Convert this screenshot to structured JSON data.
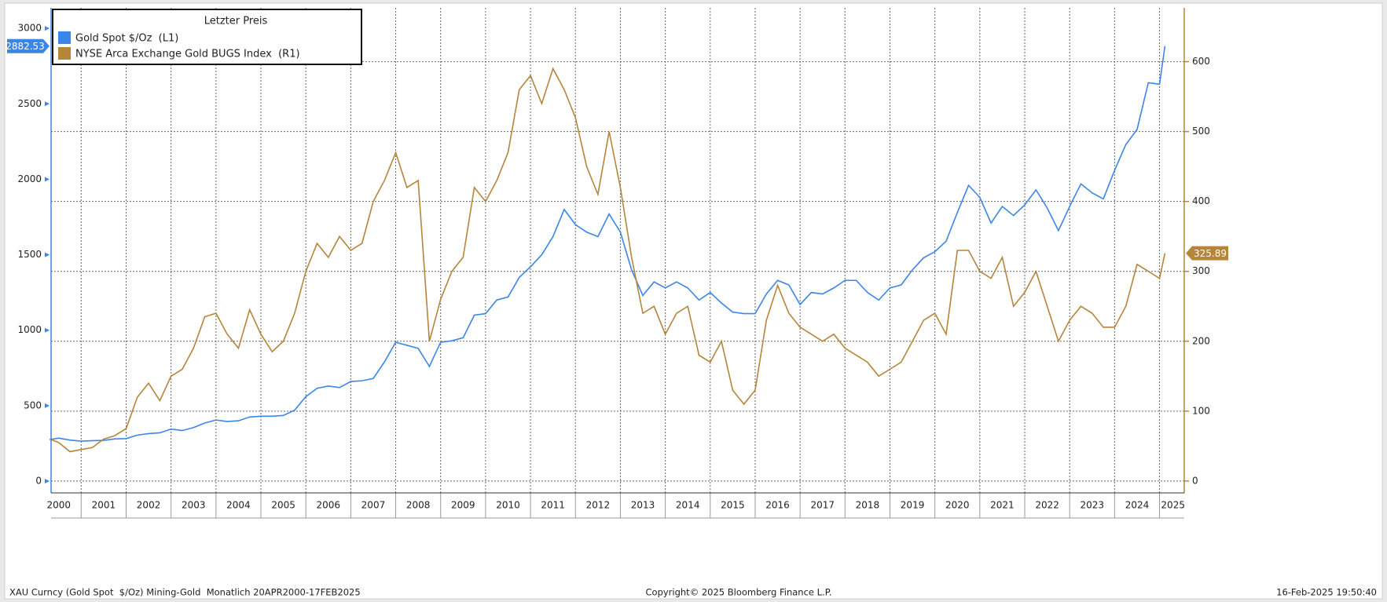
{
  "chart_data": {
    "type": "line",
    "legend_title": "Letzter Preis",
    "x": [
      2000.3,
      2000.5,
      2000.75,
      2001,
      2001.25,
      2001.5,
      2001.75,
      2002,
      2002.25,
      2002.5,
      2002.75,
      2003,
      2003.25,
      2003.5,
      2003.75,
      2004,
      2004.25,
      2004.5,
      2004.75,
      2005,
      2005.25,
      2005.5,
      2005.75,
      2006,
      2006.25,
      2006.5,
      2006.75,
      2007,
      2007.25,
      2007.5,
      2007.75,
      2008,
      2008.25,
      2008.5,
      2008.75,
      2009,
      2009.25,
      2009.5,
      2009.75,
      2010,
      2010.25,
      2010.5,
      2010.75,
      2011,
      2011.25,
      2011.5,
      2011.75,
      2012,
      2012.25,
      2012.5,
      2012.75,
      2013,
      2013.25,
      2013.5,
      2013.75,
      2014,
      2014.25,
      2014.5,
      2014.75,
      2015,
      2015.25,
      2015.5,
      2015.75,
      2016,
      2016.25,
      2016.5,
      2016.75,
      2017,
      2017.25,
      2017.5,
      2017.75,
      2018,
      2018.25,
      2018.5,
      2018.75,
      2019,
      2019.25,
      2019.5,
      2019.75,
      2020,
      2020.25,
      2020.5,
      2020.75,
      2021,
      2021.25,
      2021.5,
      2021.75,
      2022,
      2022.25,
      2022.5,
      2022.75,
      2023,
      2023.25,
      2023.5,
      2023.75,
      2024,
      2024.25,
      2024.5,
      2024.75,
      2025,
      2025.12
    ],
    "series": [
      {
        "name": "Gold Spot $/Oz  (L1)",
        "color": "#3a86e8",
        "axis": "y",
        "values": [
          275,
          285,
          272,
          265,
          268,
          270,
          280,
          282,
          305,
          315,
          320,
          345,
          335,
          355,
          385,
          405,
          395,
          400,
          425,
          430,
          430,
          435,
          470,
          560,
          615,
          630,
          620,
          660,
          665,
          680,
          790,
          920,
          900,
          880,
          760,
          920,
          930,
          950,
          1100,
          1110,
          1200,
          1220,
          1350,
          1420,
          1500,
          1620,
          1800,
          1700,
          1650,
          1620,
          1770,
          1650,
          1400,
          1230,
          1320,
          1280,
          1320,
          1280,
          1200,
          1250,
          1180,
          1120,
          1110,
          1110,
          1240,
          1330,
          1300,
          1170,
          1250,
          1240,
          1280,
          1330,
          1330,
          1250,
          1200,
          1280,
          1300,
          1400,
          1480,
          1520,
          1590,
          1780,
          1960,
          1880,
          1710,
          1820,
          1760,
          1830,
          1930,
          1810,
          1660,
          1820,
          1970,
          1910,
          1870,
          2060,
          2230,
          2330,
          2640,
          2630,
          2882.53
        ]
      },
      {
        "name": "NYSE Arca Exchange Gold BUGS Index  (R1)",
        "color": "#b5853a",
        "axis": "y2",
        "values": [
          60,
          55,
          42,
          45,
          48,
          60,
          65,
          75,
          120,
          140,
          115,
          150,
          160,
          190,
          235,
          240,
          210,
          190,
          245,
          210,
          185,
          200,
          240,
          300,
          340,
          320,
          350,
          330,
          340,
          400,
          430,
          470,
          420,
          430,
          200,
          260,
          300,
          320,
          420,
          400,
          430,
          470,
          560,
          580,
          540,
          590,
          560,
          520,
          450,
          410,
          500,
          420,
          320,
          240,
          250,
          210,
          240,
          250,
          180,
          170,
          200,
          130,
          110,
          130,
          230,
          280,
          240,
          220,
          210,
          200,
          210,
          190,
          180,
          170,
          150,
          160,
          170,
          200,
          230,
          240,
          210,
          330,
          330,
          300,
          290,
          320,
          250,
          270,
          300,
          250,
          200,
          230,
          250,
          240,
          220,
          220,
          250,
          310,
          300,
          290,
          325.89
        ]
      }
    ],
    "xlim": [
      2000.33,
      2025.55
    ],
    "xticks": [
      {
        "value": 2000.5,
        "label": "2000"
      },
      {
        "value": 2001.5,
        "label": "2001"
      },
      {
        "value": 2002.5,
        "label": "2002"
      },
      {
        "value": 2003.5,
        "label": "2003"
      },
      {
        "value": 2004.5,
        "label": "2004"
      },
      {
        "value": 2005.5,
        "label": "2005"
      },
      {
        "value": 2006.5,
        "label": "2006"
      },
      {
        "value": 2007.5,
        "label": "2007"
      },
      {
        "value": 2008.5,
        "label": "2008"
      },
      {
        "value": 2009.5,
        "label": "2009"
      },
      {
        "value": 2010.5,
        "label": "2010"
      },
      {
        "value": 2011.5,
        "label": "2011"
      },
      {
        "value": 2012.5,
        "label": "2012"
      },
      {
        "value": 2013.5,
        "label": "2013"
      },
      {
        "value": 2014.5,
        "label": "2014"
      },
      {
        "value": 2015.5,
        "label": "2015"
      },
      {
        "value": 2016.5,
        "label": "2016"
      },
      {
        "value": 2017.5,
        "label": "2017"
      },
      {
        "value": 2018.5,
        "label": "2018"
      },
      {
        "value": 2019.5,
        "label": "2019"
      },
      {
        "value": 2020.5,
        "label": "2020"
      },
      {
        "value": 2021.5,
        "label": "2021"
      },
      {
        "value": 2022.5,
        "label": "2022"
      },
      {
        "value": 2023.5,
        "label": "2023"
      },
      {
        "value": 2024.5,
        "label": "2024"
      },
      {
        "value": 2025.3,
        "label": "2025"
      }
    ],
    "ylim": [
      -78,
      3136
    ],
    "yticks": [
      0,
      500,
      1000,
      1500,
      2000,
      2500,
      3000
    ],
    "y2lim": [
      -17,
      677
    ],
    "y2ticks": [
      0,
      100,
      200,
      300,
      400,
      500,
      600
    ],
    "grid": true,
    "legend": "upper left",
    "footer_left": "XAU Curncy (Gold Spot  $/Oz) Mining-Gold  Monatlich 20APR2000-17FEB2025",
    "footer_center": "Copyright© 2025 Bloomberg Finance L.P.",
    "footer_right": "16-Feb-2025 19:50:40"
  }
}
